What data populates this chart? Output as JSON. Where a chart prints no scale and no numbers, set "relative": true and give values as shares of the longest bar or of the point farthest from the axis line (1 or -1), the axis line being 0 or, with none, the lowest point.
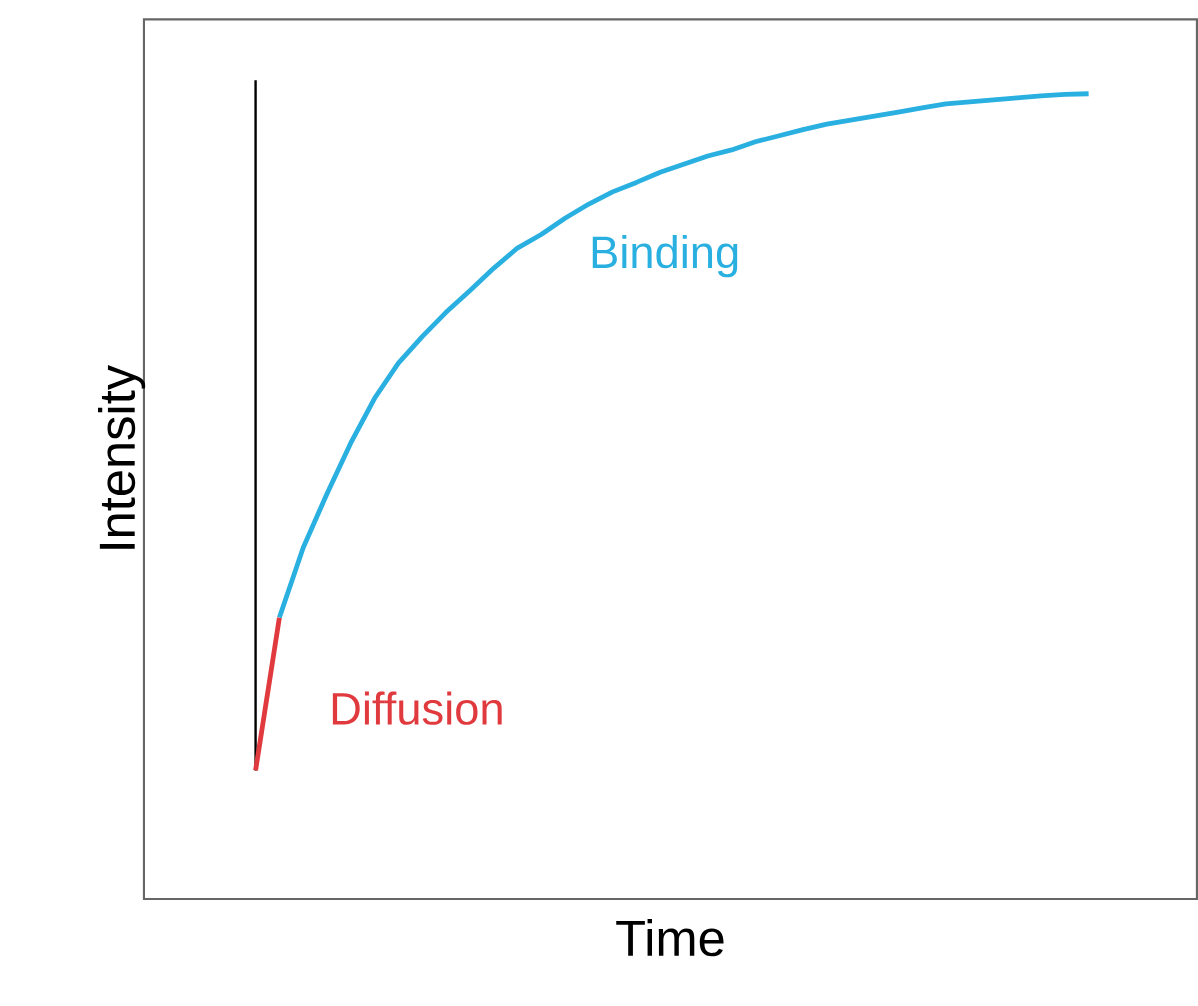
{
  "chart_data": {
    "type": "line",
    "relative": true,
    "xlabel": "Time",
    "ylabel": "Intensity",
    "marker": "none",
    "categories": [
      null,
      null,
      null,
      null,
      null,
      null,
      null,
      null,
      null,
      null,
      null,
      null,
      null,
      null,
      null,
      null,
      null,
      null,
      null,
      null,
      null,
      null,
      null,
      null,
      null,
      null,
      null,
      null,
      null,
      null,
      null,
      null,
      null,
      null,
      null,
      null
    ],
    "series": [
      {
        "name": "Diffusion",
        "color": "#e0393e",
        "values": [
          0,
          0.226,
          null,
          null,
          null,
          null,
          null,
          null,
          null,
          null,
          null,
          null,
          null,
          null,
          null,
          null,
          null,
          null,
          null,
          null,
          null,
          null,
          null,
          null,
          null,
          null,
          null,
          null,
          null,
          null,
          null,
          null,
          null,
          null,
          null,
          null
        ]
      },
      {
        "name": "Binding",
        "color": "#29b0e0",
        "values": [
          null,
          0.226,
          0.329,
          0.409,
          0.484,
          0.55,
          0.602,
          0.641,
          0.677,
          0.709,
          0.742,
          0.772,
          0.792,
          0.816,
          0.837,
          0.855,
          0.869,
          0.884,
          0.896,
          0.908,
          0.917,
          0.929,
          0.938,
          0.947,
          0.955,
          0.961,
          0.967,
          0.973,
          0.979,
          0.985,
          0.988,
          0.991,
          0.994,
          0.997,
          0.999,
          1
        ]
      }
    ]
  }
}
